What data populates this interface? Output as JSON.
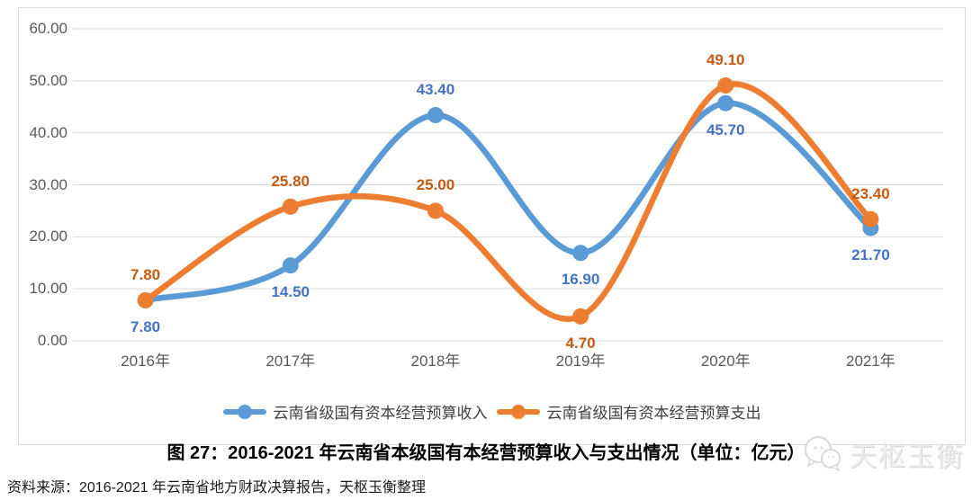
{
  "title": "图 27：2016-2021 年云南省本级国有本经营预算收入与支出情况（单位：亿元）",
  "source": "资料来源：2016-2021 年云南省地方财政决算报告，天枢玉衡整理",
  "watermark": {
    "brand": "天枢玉衡"
  },
  "colors": {
    "income_line": "#5B9BD5",
    "income_label": "#4472C4",
    "expense_line": "#ED7D31",
    "expense_label": "#C55A11",
    "gridline": "#D9D9D9",
    "axis_text": "#595959"
  },
  "chart_data": {
    "type": "line",
    "smooth": true,
    "grid": true,
    "legend_position": "bottom",
    "categories": [
      "2016年",
      "2017年",
      "2018年",
      "2019年",
      "2020年",
      "2021年"
    ],
    "y_ticks": [
      "60.00",
      "50.00",
      "40.00",
      "30.00",
      "20.00",
      "10.00",
      "0.00"
    ],
    "ylim": [
      0,
      60
    ],
    "series": [
      {
        "name": "云南省级国有资本经营预算收入",
        "color": "#5B9BD5",
        "label_color": "#4472C4",
        "values": [
          7.8,
          14.5,
          43.4,
          16.9,
          45.7,
          21.7
        ],
        "labels": [
          "7.80",
          "14.50",
          "43.40",
          "16.90",
          "45.70",
          "21.70"
        ],
        "label_placement": [
          "below",
          "below",
          "above",
          "below",
          "below",
          "below"
        ]
      },
      {
        "name": "云南省级国有资本经营预算支出",
        "color": "#ED7D31",
        "label_color": "#C55A11",
        "values": [
          7.8,
          25.8,
          25.0,
          4.7,
          49.1,
          23.4
        ],
        "labels": [
          "7.80",
          "25.80",
          "25.00",
          "4.70",
          "49.10",
          "23.40"
        ],
        "label_placement": [
          "above",
          "above",
          "above",
          "below",
          "above",
          "above"
        ]
      }
    ]
  }
}
